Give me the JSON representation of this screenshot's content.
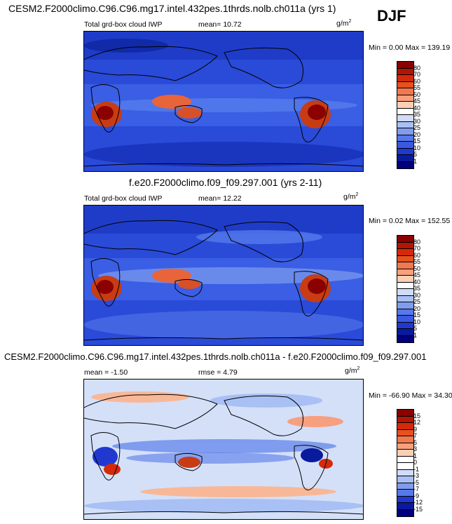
{
  "season": "DJF",
  "panels": [
    {
      "title": "CESM2.F2000climo.C96.C96.mg17.intel.432pes.1thrds.nolb.ch011a (yrs 1)",
      "variable": "Total grd-box cloud IWP",
      "mean_text": "mean=  10.72",
      "units": "g/m",
      "units_sup": "2",
      "minmax": "Min =   0.00 Max = 139.19",
      "colorbar": {
        "labels": [
          "80",
          "70",
          "60",
          "55",
          "50",
          "45",
          "40",
          "35",
          "30",
          "25",
          "20",
          "15",
          "10",
          "5",
          "1"
        ],
        "colors": [
          "#8b0000",
          "#b41400",
          "#d42a0a",
          "#e8501e",
          "#f27850",
          "#f8a07e",
          "#fbcfb4",
          "#ffffff",
          "#d0dcf8",
          "#a8c0f4",
          "#7f9cee",
          "#5578ea",
          "#3a58e2",
          "#2038d0",
          "#0a1a9c",
          "#000080"
        ]
      }
    },
    {
      "title": "f.e20.F2000climo.f09_f09.297.001 (yrs 2-11)",
      "variable": "Total grd-box cloud IWP",
      "mean_text": "mean=  12.22",
      "units": "g/m",
      "units_sup": "2",
      "minmax": "Min =   0.02 Max = 152.55",
      "colorbar": {
        "labels": [
          "80",
          "70",
          "60",
          "55",
          "50",
          "45",
          "40",
          "35",
          "30",
          "25",
          "20",
          "15",
          "10",
          "5",
          "1"
        ],
        "colors": [
          "#8b0000",
          "#b41400",
          "#d42a0a",
          "#e8501e",
          "#f27850",
          "#f8a07e",
          "#fbcfb4",
          "#ffffff",
          "#d0dcf8",
          "#a8c0f4",
          "#7f9cee",
          "#5578ea",
          "#3a58e2",
          "#2038d0",
          "#0a1a9c",
          "#000080"
        ]
      }
    },
    {
      "title": "CESM2.F2000climo.C96.C96.mg17.intel.432pes.1thrds.nolb.ch011a - f.e20.F2000climo.f09_f09.297.001",
      "variable": "",
      "mean_text": "mean = -1.50",
      "rmse_text": "rmse =   4.79",
      "units": "g/m",
      "units_sup": "2",
      "minmax": "Min = -66.90 Max =  34.30",
      "colorbar": {
        "labels": [
          "15",
          "12",
          "9",
          "7",
          "5",
          "3",
          "1",
          "0",
          "-1",
          "-3",
          "-5",
          "-7",
          "-9",
          "-12",
          "-15"
        ],
        "colors": [
          "#8b0000",
          "#b41400",
          "#d42a0a",
          "#e8501e",
          "#f27850",
          "#f8a07e",
          "#fbcfb4",
          "#ffffff",
          "#ffffff",
          "#d0dcf8",
          "#a8c0f4",
          "#7f9cee",
          "#5578ea",
          "#2038d0",
          "#0a1a9c",
          "#000080"
        ]
      }
    }
  ],
  "chart_data": [
    {
      "type": "heatmap",
      "title": "CESM2.F2000climo.C96.C96.mg17.intel.432pes.1thrds.nolb.ch011a (yrs 1)",
      "subtitle": "Total grd-box cloud IWP",
      "units": "g/m2",
      "mean": 10.72,
      "min": 0.0,
      "max": 139.19,
      "contour_levels": [
        1,
        5,
        10,
        15,
        20,
        25,
        30,
        35,
        40,
        45,
        50,
        55,
        60,
        70,
        80
      ],
      "projection": "cylindrical equidistant, global"
    },
    {
      "type": "heatmap",
      "title": "f.e20.F2000climo.f09_f09.297.001 (yrs 2-11)",
      "subtitle": "Total grd-box cloud IWP",
      "units": "g/m2",
      "mean": 12.22,
      "min": 0.02,
      "max": 152.55,
      "contour_levels": [
        1,
        5,
        10,
        15,
        20,
        25,
        30,
        35,
        40,
        45,
        50,
        55,
        60,
        70,
        80
      ],
      "projection": "cylindrical equidistant, global"
    },
    {
      "type": "heatmap",
      "title": "CESM2.F2000climo.C96.C96.mg17.intel.432pes.1thrds.nolb.ch011a - f.e20.F2000climo.f09_f09.297.001",
      "units": "g/m2",
      "mean": -1.5,
      "rmse": 4.79,
      "min": -66.9,
      "max": 34.3,
      "contour_levels": [
        -15,
        -12,
        -9,
        -7,
        -5,
        -3,
        -1,
        0,
        1,
        3,
        5,
        7,
        9,
        12,
        15
      ],
      "projection": "cylindrical equidistant, global"
    }
  ]
}
